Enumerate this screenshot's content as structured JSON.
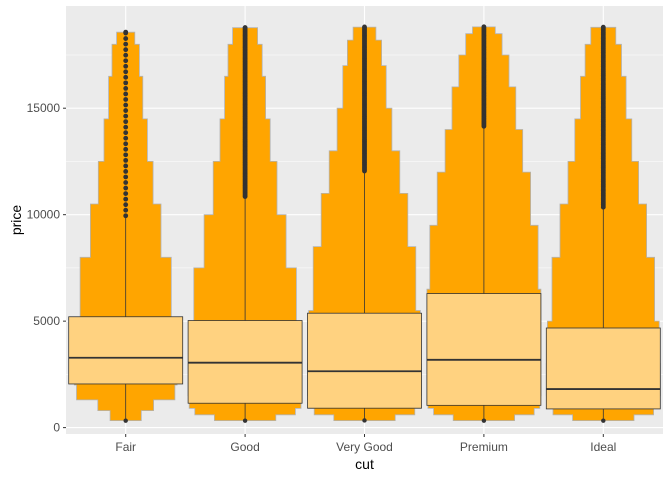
{
  "chart_data": {
    "type": "boxplot-violin",
    "xlabel": "cut",
    "ylabel": "price",
    "categories": [
      "Fair",
      "Good",
      "Very Good",
      "Premium",
      "Ideal"
    ],
    "ylim": [
      -300,
      19800
    ],
    "yticks": [
      0,
      5000,
      10000,
      15000
    ],
    "ytick_labels": [
      "0",
      "5000",
      "10000",
      "15000"
    ],
    "grid": true,
    "colors": {
      "panel_background": "#EBEBEB",
      "grid": "#FFFFFF",
      "violin_fill": "#FFA500",
      "violin_outline": "#B3B3B3",
      "box_fill": "#FFD280",
      "box_line": "#333333",
      "outlier": "#333333"
    },
    "boxes": [
      {
        "category": "Fair",
        "lower": 327,
        "q1": 2050,
        "median": 3282,
        "q3": 5206,
        "upper": 9950,
        "max": 18574
      },
      {
        "category": "Good",
        "lower": 327,
        "q1": 1145,
        "median": 3050,
        "q3": 5028,
        "upper": 10850,
        "max": 18788
      },
      {
        "category": "Very Good",
        "lower": 336,
        "q1": 912,
        "median": 2648,
        "q3": 5373,
        "upper": 12050,
        "max": 18818
      },
      {
        "category": "Premium",
        "lower": 326,
        "q1": 1046,
        "median": 3185,
        "q3": 6296,
        "upper": 14150,
        "max": 18823
      },
      {
        "category": "Ideal",
        "lower": 326,
        "q1": 878,
        "median": 1810,
        "q3": 4678,
        "upper": 10350,
        "max": 18806
      }
    ],
    "violins": [
      {
        "category": "Fair",
        "profile": [
          {
            "y": 330,
            "w": 0.06
          },
          {
            "y": 800,
            "w": 0.28
          },
          {
            "y": 1300,
            "w": 0.5
          },
          {
            "y": 2000,
            "w": 0.88
          },
          {
            "y": 3300,
            "w": 0.92
          },
          {
            "y": 5200,
            "w": 0.8
          },
          {
            "y": 8000,
            "w": 0.62
          },
          {
            "y": 10500,
            "w": 0.48
          },
          {
            "y": 12500,
            "w": 0.38
          },
          {
            "y": 14500,
            "w": 0.3
          },
          {
            "y": 16500,
            "w": 0.24
          },
          {
            "y": 18000,
            "w": 0.16
          },
          {
            "y": 18570,
            "w": 0.06
          }
        ]
      },
      {
        "category": "Good",
        "profile": [
          {
            "y": 330,
            "w": 0.12
          },
          {
            "y": 600,
            "w": 0.55
          },
          {
            "y": 900,
            "w": 0.9
          },
          {
            "y": 1500,
            "w": 1.0
          },
          {
            "y": 3000,
            "w": 0.98
          },
          {
            "y": 5000,
            "w": 0.9
          },
          {
            "y": 7500,
            "w": 0.72
          },
          {
            "y": 10000,
            "w": 0.56
          },
          {
            "y": 12500,
            "w": 0.44
          },
          {
            "y": 14500,
            "w": 0.36
          },
          {
            "y": 16500,
            "w": 0.3
          },
          {
            "y": 18000,
            "w": 0.22
          },
          {
            "y": 18780,
            "w": 0.08
          }
        ]
      },
      {
        "category": "Very Good",
        "profile": [
          {
            "y": 330,
            "w": 0.12
          },
          {
            "y": 600,
            "w": 0.55
          },
          {
            "y": 900,
            "w": 0.9
          },
          {
            "y": 1500,
            "w": 1.0
          },
          {
            "y": 3000,
            "w": 0.98
          },
          {
            "y": 5500,
            "w": 0.9
          },
          {
            "y": 8500,
            "w": 0.76
          },
          {
            "y": 11000,
            "w": 0.62
          },
          {
            "y": 13000,
            "w": 0.48
          },
          {
            "y": 15000,
            "w": 0.38
          },
          {
            "y": 17000,
            "w": 0.3
          },
          {
            "y": 18200,
            "w": 0.2
          },
          {
            "y": 18810,
            "w": 0.08
          }
        ]
      },
      {
        "category": "Premium",
        "profile": [
          {
            "y": 330,
            "w": 0.12
          },
          {
            "y": 600,
            "w": 0.55
          },
          {
            "y": 900,
            "w": 0.9
          },
          {
            "y": 1500,
            "w": 1.0
          },
          {
            "y": 3500,
            "w": 1.0
          },
          {
            "y": 6500,
            "w": 0.95
          },
          {
            "y": 9500,
            "w": 0.82
          },
          {
            "y": 12000,
            "w": 0.68
          },
          {
            "y": 14000,
            "w": 0.56
          },
          {
            "y": 16000,
            "w": 0.44
          },
          {
            "y": 17500,
            "w": 0.32
          },
          {
            "y": 18500,
            "w": 0.2
          },
          {
            "y": 18820,
            "w": 0.08
          }
        ]
      },
      {
        "category": "Ideal",
        "profile": [
          {
            "y": 330,
            "w": 0.12
          },
          {
            "y": 600,
            "w": 0.55
          },
          {
            "y": 900,
            "w": 0.9
          },
          {
            "y": 1500,
            "w": 1.0
          },
          {
            "y": 3000,
            "w": 0.98
          },
          {
            "y": 5000,
            "w": 0.9
          },
          {
            "y": 8000,
            "w": 0.76
          },
          {
            "y": 10500,
            "w": 0.62
          },
          {
            "y": 12500,
            "w": 0.5
          },
          {
            "y": 14500,
            "w": 0.4
          },
          {
            "y": 16500,
            "w": 0.32
          },
          {
            "y": 18000,
            "w": 0.22
          },
          {
            "y": 18800,
            "w": 0.08
          }
        ]
      }
    ]
  }
}
